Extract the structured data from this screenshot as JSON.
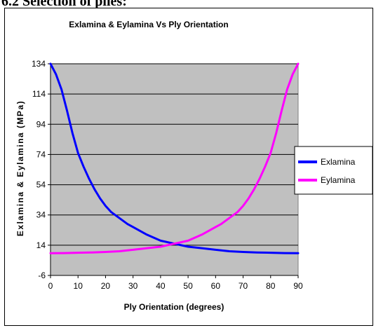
{
  "page": {
    "heading": "6.2 Selection of plies:"
  },
  "colors": {
    "plot_background": "#c0c0c0",
    "exlamina": "#0000ff",
    "eylamina": "#ff00ff"
  },
  "chart_data": {
    "type": "line",
    "title": "Exlamina & Eylamina Vs Ply Orientation",
    "xlabel": "Ply Orientation (degrees)",
    "ylabel": "Exlamina & Eylamina (MPa)",
    "xlim": [
      0,
      90
    ],
    "ylim": [
      -6,
      134
    ],
    "x_ticks": [
      0,
      10,
      20,
      30,
      40,
      50,
      60,
      70,
      80,
      90
    ],
    "y_ticks": [
      -6,
      14,
      34,
      54,
      74,
      94,
      114,
      134
    ],
    "grid": "horizontal",
    "legend_position": "right",
    "series": [
      {
        "name": "Exlamina",
        "color": "#0000ff",
        "x": [
          0,
          2,
          4,
          6,
          8,
          10,
          12,
          14,
          16,
          18,
          20,
          22,
          25,
          28,
          30,
          35,
          40,
          45,
          50,
          55,
          60,
          65,
          70,
          75,
          80,
          85,
          90
        ],
        "y": [
          134,
          127,
          117,
          103,
          88,
          75,
          66,
          58,
          51,
          45,
          40,
          36,
          32,
          28,
          26,
          21,
          17,
          15,
          13,
          12,
          11,
          10,
          9.5,
          9.2,
          9,
          8.8,
          8.7
        ]
      },
      {
        "name": "Eylamina",
        "color": "#ff00ff",
        "x": [
          0,
          5,
          10,
          15,
          20,
          25,
          30,
          35,
          40,
          45,
          50,
          55,
          60,
          62,
          65,
          68,
          70,
          72,
          74,
          76,
          78,
          80,
          82,
          84,
          86,
          88,
          90
        ],
        "y": [
          8.7,
          8.8,
          9,
          9.2,
          9.5,
          10,
          11,
          12,
          13,
          15,
          17,
          21,
          26,
          28,
          32,
          36,
          40,
          45,
          51,
          58,
          66,
          75,
          88,
          103,
          117,
          127,
          134
        ]
      }
    ]
  }
}
